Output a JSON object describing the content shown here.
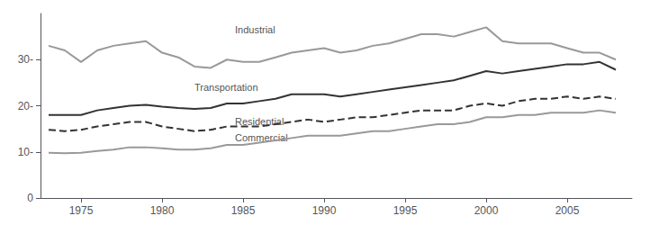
{
  "chart_data": {
    "type": "line",
    "x": [
      1973,
      1974,
      1975,
      1976,
      1977,
      1978,
      1979,
      1980,
      1981,
      1982,
      1983,
      1984,
      1985,
      1986,
      1987,
      1988,
      1989,
      1990,
      1991,
      1992,
      1993,
      1994,
      1995,
      1996,
      1997,
      1998,
      1999,
      2000,
      2001,
      2002,
      2003,
      2004,
      2005,
      2006,
      2007,
      2008
    ],
    "series": [
      {
        "color": "#999999",
        "line_style": "solid",
        "values": [
          33.0,
          32.0,
          29.5,
          32.0,
          33.0,
          33.5,
          34.0,
          31.5,
          30.5,
          28.5,
          28.2,
          30.0,
          29.5,
          29.5,
          30.5,
          31.5,
          32.0,
          32.5,
          31.5,
          32.0,
          33.0,
          33.5,
          34.5,
          35.5,
          35.5,
          35.0,
          36.0,
          37.0,
          34.0,
          33.5,
          33.5,
          33.5,
          32.5,
          31.5,
          31.5,
          30.0
        ]
      },
      {
        "color": "#333333",
        "line_style": "solid",
        "values": [
          18.0,
          18.0,
          18.0,
          19.0,
          19.5,
          20.0,
          20.2,
          19.8,
          19.5,
          19.3,
          19.5,
          20.5,
          20.5,
          21.0,
          21.5,
          22.5,
          22.5,
          22.5,
          22.0,
          22.5,
          23.0,
          23.5,
          24.0,
          24.5,
          25.0,
          25.5,
          26.5,
          27.5,
          27.0,
          27.5,
          28.0,
          28.5,
          29.0,
          29.0,
          29.5,
          27.8
        ]
      },
      {
        "color": "#333333",
        "line_style": "dashed",
        "values": [
          14.8,
          14.5,
          14.8,
          15.5,
          16.0,
          16.5,
          16.5,
          15.5,
          15.0,
          14.5,
          14.8,
          15.5,
          15.5,
          15.5,
          16.0,
          16.5,
          17.0,
          16.5,
          17.0,
          17.5,
          17.5,
          18.0,
          18.5,
          19.0,
          19.0,
          19.0,
          20.0,
          20.5,
          20.0,
          21.0,
          21.5,
          21.5,
          22.0,
          21.5,
          22.0,
          21.5
        ]
      },
      {
        "color": "#999999",
        "line_style": "solid",
        "values": [
          9.8,
          9.7,
          9.8,
          10.2,
          10.5,
          11.0,
          11.0,
          10.8,
          10.5,
          10.5,
          10.8,
          11.5,
          11.5,
          12.0,
          12.5,
          13.0,
          13.5,
          13.5,
          13.5,
          14.0,
          14.5,
          14.5,
          15.0,
          15.5,
          16.0,
          16.0,
          16.5,
          17.5,
          17.5,
          18.0,
          18.0,
          18.5,
          18.5,
          18.5,
          19.0,
          18.5
        ]
      }
    ],
    "annotations": [
      {
        "text": "Industrial",
        "x": 1984.5,
        "y": 35.5
      },
      {
        "text": "Transportation",
        "x": 1982.0,
        "y": 23.0
      },
      {
        "text": "Residential",
        "x": 1984.5,
        "y": 15.5
      },
      {
        "text": "Commercial",
        "x": 1984.5,
        "y": 12.0
      }
    ],
    "xlim": [
      1972.5,
      2009
    ],
    "xticks": [
      1975,
      1980,
      1985,
      1990,
      1995,
      2000,
      2005
    ],
    "ylim": [
      0,
      40
    ],
    "yticks": [
      0,
      {
        "value": 10,
        "label": "10-"
      },
      {
        "value": 20,
        "label": "20-"
      },
      {
        "value": 30,
        "label": "30-"
      }
    ],
    "grid": false
  }
}
